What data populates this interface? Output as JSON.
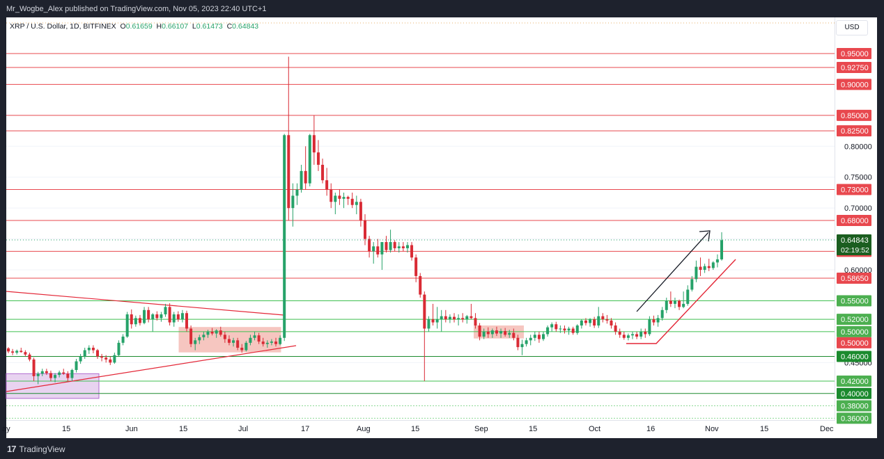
{
  "header": {
    "publisher_text": "Mr_Wogbe_Alex published on TradingView.com, Nov 05, 2023 22:40 UTC+1"
  },
  "legend": {
    "symbol": "XRP / U.S. Dollar, 1D, BITFINEX",
    "o_key": "O",
    "o_val": "0.61659",
    "h_key": "H",
    "h_val": "0.66107",
    "l_key": "L",
    "l_val": "0.61473",
    "c_key": "C",
    "c_val": "0.64843"
  },
  "currency_button": "USD",
  "footer": {
    "brand": "TradingView",
    "logo_glyph": "17"
  },
  "colors": {
    "up": "#26a269",
    "down": "#d92b35",
    "level_red": "#e8484e",
    "level_green": "#3fbf4f",
    "level_dark_green": "#1b8a2e",
    "grid": "#f0f3fa"
  },
  "chart_data": {
    "type": "candlestick",
    "symbol": "XRP / U.S. Dollar",
    "timeframe": "1D",
    "exchange": "BITFINEX",
    "y_range": [
      0.355,
      0.965
    ],
    "x_ticks": [
      "ay",
      "15",
      "Jun",
      "15",
      "Jul",
      "17",
      "Aug",
      "15",
      "Sep",
      "15",
      "Oct",
      "16",
      "Nov",
      "15",
      "Dec"
    ],
    "y_ticks_plain": [
      "0.80000",
      "0.75000",
      "0.70000",
      "0.60000",
      "0.45000"
    ],
    "current_price": {
      "value": 0.64843,
      "label": "0.64843",
      "countdown": "02:19:52"
    },
    "horizontal_levels": [
      {
        "value": 0.95,
        "label": "0.95000",
        "color": "red"
      },
      {
        "value": 0.9275,
        "label": "0.92750",
        "color": "red"
      },
      {
        "value": 0.9,
        "label": "0.90000",
        "color": "red"
      },
      {
        "value": 0.85,
        "label": "0.85000",
        "color": "red"
      },
      {
        "value": 0.825,
        "label": "0.82500",
        "color": "red"
      },
      {
        "value": 0.73,
        "label": "0.73000",
        "color": "red"
      },
      {
        "value": 0.68,
        "label": "0.68000",
        "color": "red"
      },
      {
        "value": 0.63,
        "label": "0.63000",
        "color": "red"
      },
      {
        "value": 0.5865,
        "label": "0.58650",
        "color": "red"
      },
      {
        "value": 0.55,
        "label": "0.55000",
        "color": "green"
      },
      {
        "value": 0.52,
        "label": "0.52000",
        "color": "green"
      },
      {
        "value": 0.5,
        "label": "0.50000",
        "color": "green"
      },
      {
        "value": 0.5,
        "label": "0.50000",
        "color": "red"
      },
      {
        "value": 0.46,
        "label": "0.46000",
        "color": "dark-green"
      },
      {
        "value": 0.42,
        "label": "0.42000",
        "color": "green"
      },
      {
        "value": 0.4,
        "label": "0.40000",
        "color": "dark-green"
      },
      {
        "value": 0.38,
        "label": "0.38000",
        "color": "green"
      },
      {
        "value": 0.36,
        "label": "0.36000",
        "color": "green"
      }
    ],
    "candles": [
      [
        0.473,
        0.475,
        0.465,
        0.468
      ],
      [
        0.468,
        0.472,
        0.462,
        0.466
      ],
      [
        0.466,
        0.471,
        0.463,
        0.469
      ],
      [
        0.469,
        0.474,
        0.466,
        0.467
      ],
      [
        0.467,
        0.47,
        0.46,
        0.463
      ],
      [
        0.463,
        0.466,
        0.452,
        0.455
      ],
      [
        0.455,
        0.458,
        0.42,
        0.428
      ],
      [
        0.428,
        0.435,
        0.415,
        0.432
      ],
      [
        0.432,
        0.44,
        0.428,
        0.436
      ],
      [
        0.436,
        0.44,
        0.43,
        0.433
      ],
      [
        0.433,
        0.437,
        0.42,
        0.425
      ],
      [
        0.425,
        0.433,
        0.418,
        0.43
      ],
      [
        0.43,
        0.437,
        0.426,
        0.434
      ],
      [
        0.434,
        0.44,
        0.43,
        0.432
      ],
      [
        0.432,
        0.436,
        0.42,
        0.425
      ],
      [
        0.425,
        0.44,
        0.42,
        0.438
      ],
      [
        0.438,
        0.456,
        0.434,
        0.452
      ],
      [
        0.452,
        0.464,
        0.448,
        0.46
      ],
      [
        0.46,
        0.474,
        0.456,
        0.47
      ],
      [
        0.47,
        0.478,
        0.464,
        0.474
      ],
      [
        0.474,
        0.478,
        0.465,
        0.47
      ],
      [
        0.47,
        0.472,
        0.456,
        0.46
      ],
      [
        0.46,
        0.464,
        0.452,
        0.458
      ],
      [
        0.458,
        0.462,
        0.45,
        0.455
      ],
      [
        0.455,
        0.46,
        0.446,
        0.45
      ],
      [
        0.45,
        0.466,
        0.448,
        0.462
      ],
      [
        0.462,
        0.486,
        0.46,
        0.482
      ],
      [
        0.482,
        0.496,
        0.478,
        0.492
      ],
      [
        0.492,
        0.532,
        0.49,
        0.528
      ],
      [
        0.528,
        0.536,
        0.505,
        0.512
      ],
      [
        0.512,
        0.526,
        0.508,
        0.522
      ],
      [
        0.522,
        0.527,
        0.51,
        0.514
      ],
      [
        0.514,
        0.54,
        0.512,
        0.535
      ],
      [
        0.535,
        0.54,
        0.515,
        0.52
      ],
      [
        0.52,
        0.53,
        0.5,
        0.528
      ],
      [
        0.528,
        0.533,
        0.518,
        0.522
      ],
      [
        0.522,
        0.532,
        0.516,
        0.528
      ],
      [
        0.528,
        0.545,
        0.524,
        0.54
      ],
      [
        0.54,
        0.546,
        0.51,
        0.515
      ],
      [
        0.515,
        0.532,
        0.508,
        0.528
      ],
      [
        0.528,
        0.533,
        0.516,
        0.52
      ],
      [
        0.52,
        0.535,
        0.515,
        0.53
      ],
      [
        0.53,
        0.534,
        0.5,
        0.505
      ],
      [
        0.505,
        0.51,
        0.475,
        0.48
      ],
      [
        0.48,
        0.49,
        0.47,
        0.486
      ],
      [
        0.486,
        0.495,
        0.48,
        0.491
      ],
      [
        0.491,
        0.5,
        0.486,
        0.495
      ],
      [
        0.495,
        0.503,
        0.49,
        0.5
      ],
      [
        0.5,
        0.506,
        0.494,
        0.497
      ],
      [
        0.497,
        0.504,
        0.49,
        0.502
      ],
      [
        0.502,
        0.508,
        0.492,
        0.495
      ],
      [
        0.495,
        0.5,
        0.482,
        0.488
      ],
      [
        0.488,
        0.494,
        0.478,
        0.482
      ],
      [
        0.482,
        0.49,
        0.476,
        0.486
      ],
      [
        0.486,
        0.49,
        0.47,
        0.474
      ],
      [
        0.474,
        0.48,
        0.466,
        0.47
      ],
      [
        0.47,
        0.485,
        0.468,
        0.482
      ],
      [
        0.482,
        0.495,
        0.478,
        0.49
      ],
      [
        0.49,
        0.5,
        0.486,
        0.494
      ],
      [
        0.494,
        0.498,
        0.48,
        0.484
      ],
      [
        0.484,
        0.49,
        0.476,
        0.48
      ],
      [
        0.48,
        0.486,
        0.474,
        0.482
      ],
      [
        0.482,
        0.488,
        0.478,
        0.484
      ],
      [
        0.484,
        0.49,
        0.476,
        0.48
      ],
      [
        0.48,
        0.494,
        0.478,
        0.49
      ],
      [
        0.49,
        0.82,
        0.485,
        0.818
      ],
      [
        0.818,
        0.945,
        0.68,
        0.7
      ],
      [
        0.7,
        0.74,
        0.67,
        0.72
      ],
      [
        0.72,
        0.74,
        0.705,
        0.73
      ],
      [
        0.73,
        0.77,
        0.725,
        0.76
      ],
      [
        0.76,
        0.8,
        0.73,
        0.74
      ],
      [
        0.74,
        0.82,
        0.735,
        0.818
      ],
      [
        0.818,
        0.85,
        0.77,
        0.79
      ],
      [
        0.79,
        0.81,
        0.76,
        0.77
      ],
      [
        0.77,
        0.78,
        0.74,
        0.745
      ],
      [
        0.745,
        0.765,
        0.72,
        0.73
      ],
      [
        0.73,
        0.74,
        0.7,
        0.71
      ],
      [
        0.71,
        0.725,
        0.69,
        0.72
      ],
      [
        0.72,
        0.73,
        0.705,
        0.715
      ],
      [
        0.715,
        0.725,
        0.7,
        0.718
      ],
      [
        0.718,
        0.72,
        0.705,
        0.715
      ],
      [
        0.715,
        0.725,
        0.7,
        0.705
      ],
      [
        0.705,
        0.72,
        0.69,
        0.71
      ],
      [
        0.71,
        0.715,
        0.67,
        0.68
      ],
      [
        0.68,
        0.69,
        0.64,
        0.65
      ],
      [
        0.65,
        0.655,
        0.62,
        0.63
      ],
      [
        0.63,
        0.645,
        0.61,
        0.638
      ],
      [
        0.638,
        0.65,
        0.62,
        0.625
      ],
      [
        0.625,
        0.64,
        0.6,
        0.645
      ],
      [
        0.645,
        0.655,
        0.628,
        0.632
      ],
      [
        0.632,
        0.665,
        0.628,
        0.645
      ],
      [
        0.645,
        0.648,
        0.63,
        0.635
      ],
      [
        0.635,
        0.645,
        0.628,
        0.638
      ],
      [
        0.638,
        0.645,
        0.63,
        0.635
      ],
      [
        0.635,
        0.645,
        0.628,
        0.64
      ],
      [
        0.64,
        0.645,
        0.615,
        0.62
      ],
      [
        0.62,
        0.625,
        0.58,
        0.59
      ],
      [
        0.59,
        0.595,
        0.555,
        0.56
      ],
      [
        0.56,
        0.565,
        0.42,
        0.505
      ],
      [
        0.505,
        0.525,
        0.5,
        0.52
      ],
      [
        0.52,
        0.545,
        0.51,
        0.515
      ],
      [
        0.515,
        0.54,
        0.505,
        0.52
      ],
      [
        0.52,
        0.535,
        0.5,
        0.525
      ],
      [
        0.525,
        0.535,
        0.515,
        0.52
      ],
      [
        0.52,
        0.528,
        0.514,
        0.524
      ],
      [
        0.524,
        0.53,
        0.515,
        0.52
      ],
      [
        0.52,
        0.528,
        0.51,
        0.522
      ],
      [
        0.522,
        0.53,
        0.515,
        0.52
      ],
      [
        0.52,
        0.527,
        0.513,
        0.525
      ],
      [
        0.525,
        0.545,
        0.52,
        0.522
      ],
      [
        0.522,
        0.53,
        0.505,
        0.51
      ],
      [
        0.51,
        0.514,
        0.486,
        0.492
      ],
      [
        0.492,
        0.505,
        0.488,
        0.5
      ],
      [
        0.5,
        0.507,
        0.49,
        0.496
      ],
      [
        0.496,
        0.505,
        0.49,
        0.502
      ],
      [
        0.502,
        0.508,
        0.493,
        0.497
      ],
      [
        0.497,
        0.505,
        0.49,
        0.501
      ],
      [
        0.501,
        0.506,
        0.492,
        0.495
      ],
      [
        0.495,
        0.503,
        0.49,
        0.498
      ],
      [
        0.498,
        0.505,
        0.486,
        0.49
      ],
      [
        0.49,
        0.495,
        0.47,
        0.475
      ],
      [
        0.475,
        0.487,
        0.462,
        0.48
      ],
      [
        0.48,
        0.49,
        0.476,
        0.486
      ],
      [
        0.486,
        0.495,
        0.478,
        0.49
      ],
      [
        0.49,
        0.5,
        0.485,
        0.495
      ],
      [
        0.495,
        0.5,
        0.482,
        0.488
      ],
      [
        0.488,
        0.5,
        0.485,
        0.496
      ],
      [
        0.496,
        0.51,
        0.492,
        0.507
      ],
      [
        0.507,
        0.515,
        0.5,
        0.512
      ],
      [
        0.512,
        0.516,
        0.5,
        0.504
      ],
      [
        0.504,
        0.51,
        0.498,
        0.505
      ],
      [
        0.505,
        0.51,
        0.497,
        0.502
      ],
      [
        0.502,
        0.508,
        0.495,
        0.505
      ],
      [
        0.505,
        0.508,
        0.495,
        0.498
      ],
      [
        0.498,
        0.512,
        0.495,
        0.51
      ],
      [
        0.51,
        0.52,
        0.505,
        0.518
      ],
      [
        0.518,
        0.522,
        0.51,
        0.514
      ],
      [
        0.514,
        0.522,
        0.508,
        0.52
      ],
      [
        0.52,
        0.524,
        0.506,
        0.51
      ],
      [
        0.51,
        0.54,
        0.506,
        0.525
      ],
      [
        0.525,
        0.53,
        0.515,
        0.52
      ],
      [
        0.52,
        0.527,
        0.513,
        0.518
      ],
      [
        0.518,
        0.522,
        0.505,
        0.51
      ],
      [
        0.51,
        0.515,
        0.495,
        0.5
      ],
      [
        0.5,
        0.505,
        0.49,
        0.495
      ],
      [
        0.495,
        0.5,
        0.487,
        0.49
      ],
      [
        0.49,
        0.497,
        0.486,
        0.494
      ],
      [
        0.494,
        0.5,
        0.488,
        0.496
      ],
      [
        0.496,
        0.5,
        0.488,
        0.492
      ],
      [
        0.492,
        0.505,
        0.488,
        0.5
      ],
      [
        0.5,
        0.505,
        0.49,
        0.496
      ],
      [
        0.496,
        0.525,
        0.493,
        0.52
      ],
      [
        0.52,
        0.526,
        0.51,
        0.515
      ],
      [
        0.515,
        0.527,
        0.508,
        0.522
      ],
      [
        0.522,
        0.54,
        0.518,
        0.535
      ],
      [
        0.535,
        0.555,
        0.53,
        0.55
      ],
      [
        0.55,
        0.565,
        0.54,
        0.545
      ],
      [
        0.545,
        0.555,
        0.538,
        0.55
      ],
      [
        0.55,
        0.552,
        0.535,
        0.54
      ],
      [
        0.54,
        0.565,
        0.538,
        0.545
      ],
      [
        0.545,
        0.575,
        0.542,
        0.568
      ],
      [
        0.568,
        0.59,
        0.565,
        0.585
      ],
      [
        0.585,
        0.615,
        0.58,
        0.605
      ],
      [
        0.605,
        0.62,
        0.59,
        0.6
      ],
      [
        0.6,
        0.61,
        0.595,
        0.606
      ],
      [
        0.606,
        0.618,
        0.598,
        0.603
      ],
      [
        0.603,
        0.614,
        0.6,
        0.612
      ],
      [
        0.612,
        0.625,
        0.604,
        0.617
      ],
      [
        0.617,
        0.661,
        0.615,
        0.648
      ]
    ],
    "drawings": {
      "trendlines": [
        "descending resistance line",
        "ascending support line",
        "rising support line (Oct-Nov)"
      ],
      "boxes": [
        "purple consolidation zone (May)",
        "red range zone (Jun-Jul)",
        "red range zone (Sep)"
      ],
      "arrow": "upward arrow (Oct-Nov)"
    }
  }
}
